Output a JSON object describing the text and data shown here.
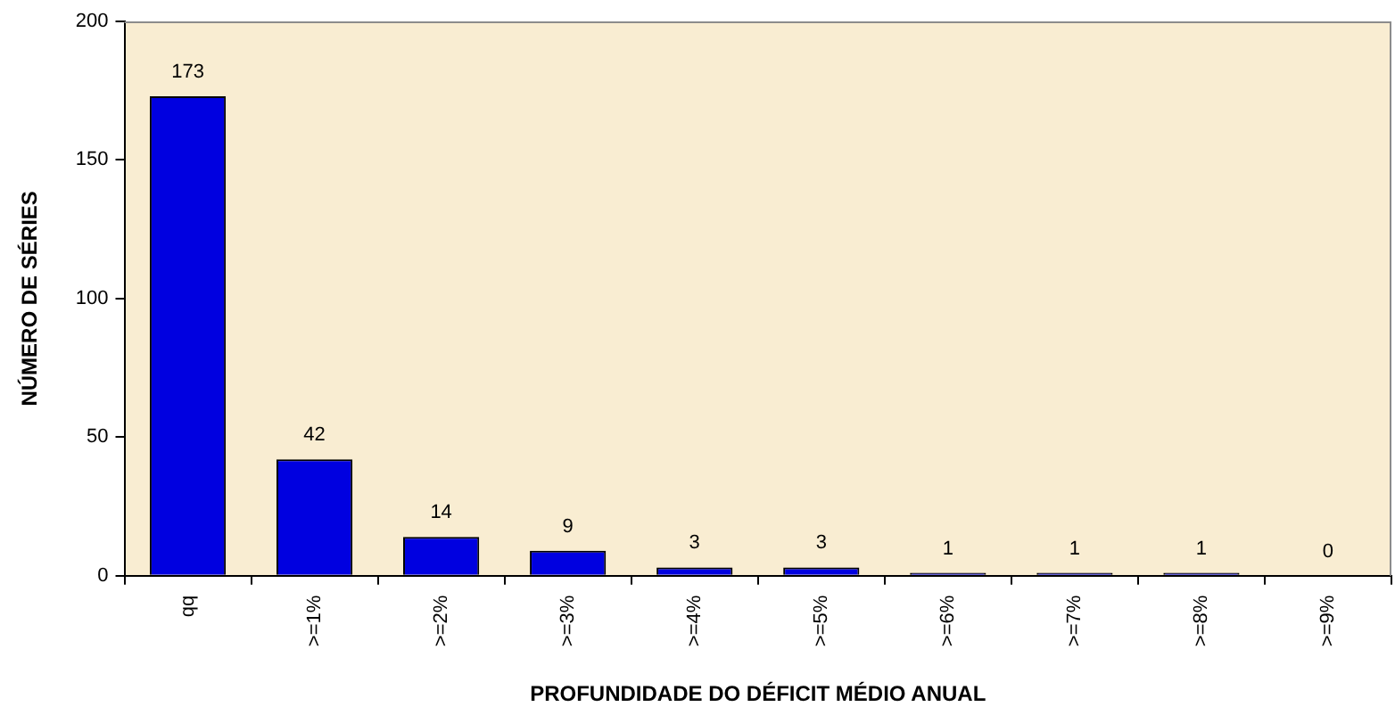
{
  "chart_data": {
    "type": "bar",
    "xlabel": "PROFUNDIDADE DO DÉFICIT MÉDIO ANUAL",
    "ylabel": "NÚMERO DE SÉRIES",
    "categories": [
      "qq",
      ">=1%",
      ">=2%",
      ">=3%",
      ">=4%",
      ">=5%",
      ">=6%",
      ">=7%",
      ">=8%",
      ">=9%"
    ],
    "values": [
      173,
      42,
      14,
      9,
      3,
      3,
      1,
      1,
      1,
      0
    ],
    "color": "#0000e0",
    "ylim": [
      0,
      200
    ],
    "yticks": [
      0,
      50,
      100,
      150,
      200
    ],
    "grid": false,
    "data_labels": true,
    "legend": false
  }
}
